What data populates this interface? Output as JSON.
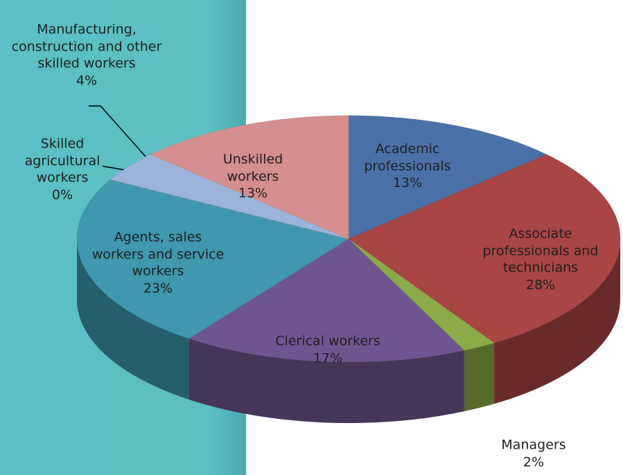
{
  "chart_data": {
    "type": "pie",
    "categories": [
      "Academic professionals",
      "Associate professionals and technicians",
      "Managers",
      "Clerical workers",
      "Agents, sales workers and service workers",
      "Skilled agricultural workers",
      "Manufacturing, construction and other skilled workers",
      "Unskilled workers"
    ],
    "values": [
      13,
      28,
      2,
      17,
      23,
      0,
      4,
      13
    ],
    "value_labels": [
      "13%",
      "28%",
      "2%",
      "17%",
      "23%",
      "0%",
      "4%",
      "13%"
    ],
    "colors": [
      "#4a72a8",
      "#a94543",
      "#8aab47",
      "#6f5590",
      "#3f98ad",
      "#e0873a",
      "#9cb4da",
      "#d48f8e"
    ]
  }
}
